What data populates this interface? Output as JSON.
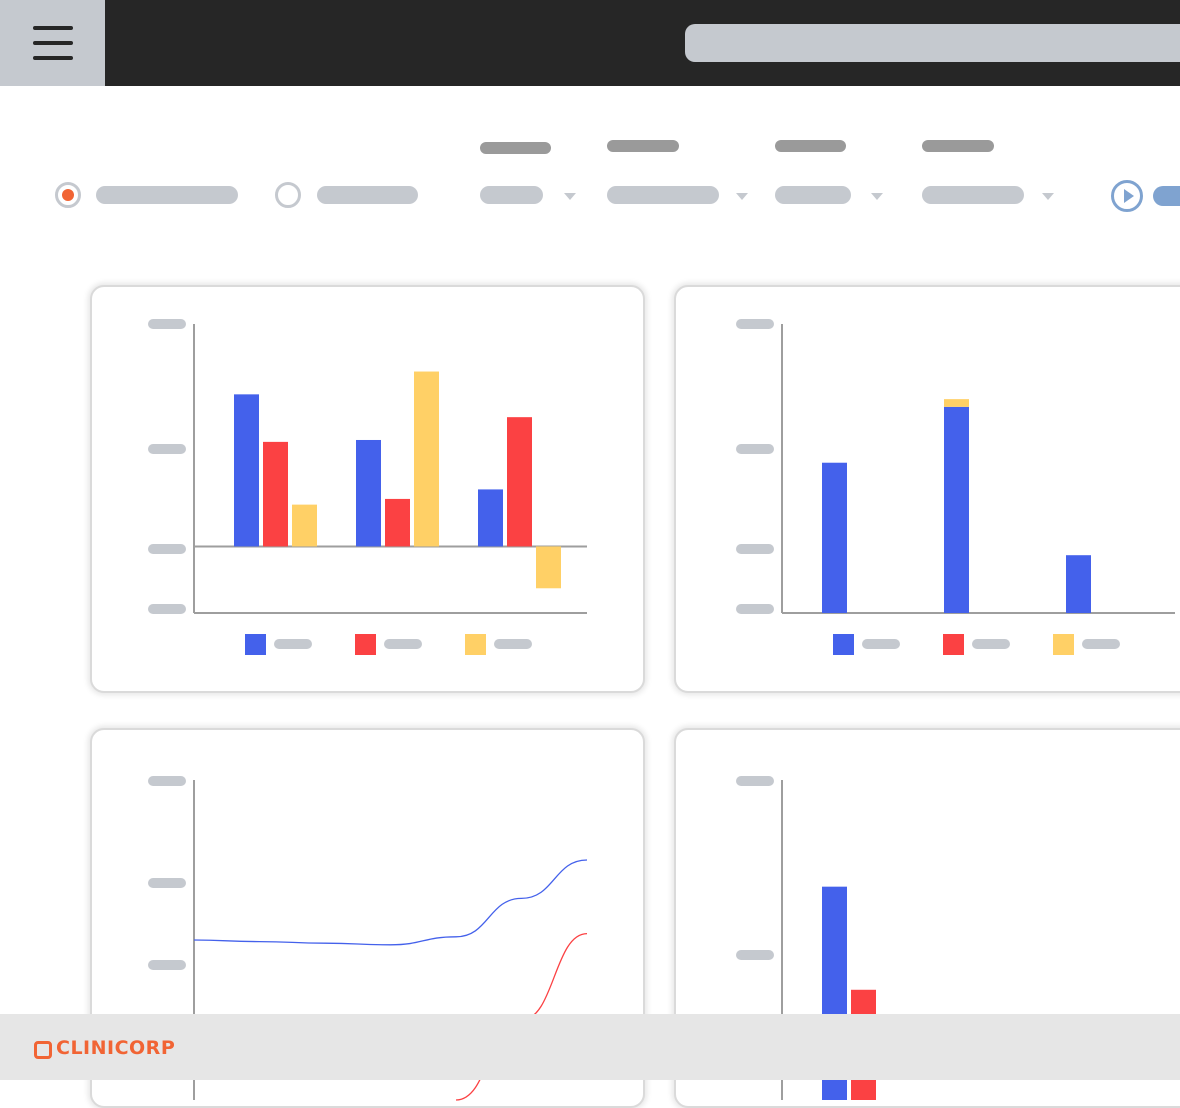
{
  "header": {
    "menu_icon": "hamburger-icon",
    "search_placeholder": ""
  },
  "filters": {
    "radios": [
      {
        "selected": true,
        "label": ""
      },
      {
        "selected": false,
        "label": ""
      }
    ],
    "dropdowns": [
      {
        "label": "",
        "value": ""
      },
      {
        "label": "",
        "value": ""
      },
      {
        "label": "",
        "value": ""
      },
      {
        "label": "",
        "value": ""
      }
    ],
    "run_button": {
      "icon": "play-icon",
      "label": ""
    }
  },
  "colors": {
    "blue": "#4461eb",
    "red": "#fb4143",
    "yellow": "#ffd066",
    "accent": "#f16434",
    "run": "#7fa3d0"
  },
  "chart_data": [
    {
      "type": "bar",
      "categories": [
        "",
        "",
        ""
      ],
      "series": [
        {
          "values": [
            80,
            56,
            30
          ],
          "color": "#4461eb"
        },
        {
          "values": [
            55,
            25,
            68
          ],
          "color": "#fb4143"
        },
        {
          "values": [
            22,
            92,
            -22
          ],
          "color": "#ffd066"
        }
      ],
      "ylim": [
        -35,
        117
      ],
      "legend": "bottom",
      "title": "",
      "xlabel": "",
      "ylabel": ""
    },
    {
      "type": "bar",
      "stacked": true,
      "categories": [
        "",
        "",
        ""
      ],
      "series": [
        {
          "values": [
            78,
            107,
            30
          ],
          "color": "#4461eb"
        },
        {
          "values": [
            0,
            0,
            0
          ],
          "color": "#fb4143"
        },
        {
          "values": [
            0,
            4,
            0
          ],
          "color": "#ffd066"
        }
      ],
      "ylim": [
        0,
        150
      ],
      "legend": "bottom",
      "title": "",
      "xlabel": "",
      "ylabel": ""
    },
    {
      "type": "line",
      "x": [
        0,
        1,
        2,
        3,
        4,
        5,
        6
      ],
      "series": [
        {
          "values": [
            50,
            49.5,
            49,
            48.5,
            51,
            63,
            75
          ],
          "color": "#4461eb"
        },
        {
          "values": [
            null,
            null,
            null,
            null,
            0,
            25,
            52
          ],
          "color": "#fb4143"
        }
      ],
      "ylim": [
        0,
        100
      ],
      "title": "",
      "xlabel": "",
      "ylabel": ""
    },
    {
      "type": "bar",
      "categories": [
        "",
        "",
        ""
      ],
      "series": [
        {
          "values": [
            120,
            0,
            0
          ],
          "color": "#4461eb"
        },
        {
          "values": [
            62,
            0,
            0
          ],
          "color": "#fb4143"
        }
      ],
      "ylim": [
        0,
        180
      ],
      "title": "",
      "xlabel": "",
      "ylabel": ""
    }
  ],
  "footer": {
    "logo_text": "CLINICORP"
  }
}
